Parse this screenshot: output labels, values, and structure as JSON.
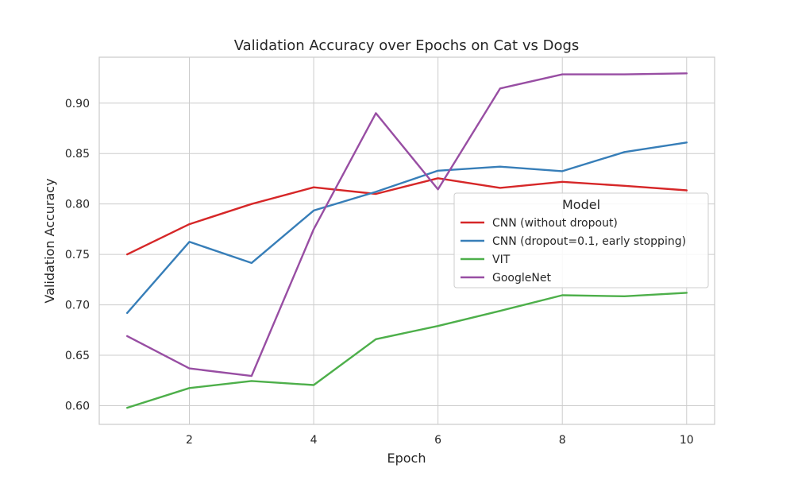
{
  "chart_data": {
    "type": "line",
    "title": "Validation Accuracy over Epochs on Cat vs Dogs",
    "xlabel": "Epoch",
    "ylabel": "Validation Accuracy",
    "xlim": [
      0.55,
      10.45
    ],
    "ylim": [
      0.5815,
      0.9455
    ],
    "xticks": [
      2,
      4,
      6,
      8,
      10
    ],
    "yticks": [
      0.6,
      0.65,
      0.7,
      0.75,
      0.8,
      0.85,
      0.9
    ],
    "grid": true,
    "legend": {
      "title": "Model",
      "placement": "center-right"
    },
    "x": [
      1,
      2,
      3,
      4,
      5,
      6,
      7,
      8,
      9,
      10
    ],
    "series": [
      {
        "name": "CNN (without dropout)",
        "color": "#d62728",
        "values": [
          0.75,
          0.78,
          0.8,
          0.8165,
          0.81,
          0.8255,
          0.816,
          0.822,
          0.818,
          0.8135
        ]
      },
      {
        "name": "CNN (dropout=0.1, early stopping)",
        "color": "#377eb8",
        "values": [
          0.692,
          0.7625,
          0.7415,
          0.7935,
          0.812,
          0.833,
          0.837,
          0.8325,
          0.8515,
          0.861
        ]
      },
      {
        "name": "VIT",
        "color": "#4daf4a",
        "values": [
          0.598,
          0.6175,
          0.6245,
          0.6205,
          0.666,
          0.679,
          0.694,
          0.7095,
          0.7085,
          0.712
        ]
      },
      {
        "name": "GoogleNet",
        "color": "#984ea3",
        "values": [
          0.669,
          0.637,
          0.6295,
          0.775,
          0.89,
          0.8145,
          0.9145,
          0.9285,
          0.9285,
          0.9295
        ]
      }
    ]
  }
}
